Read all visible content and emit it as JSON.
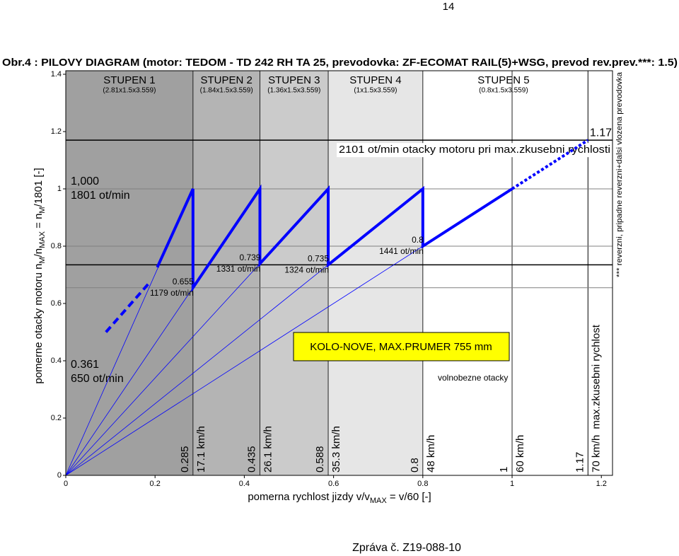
{
  "page_number": "14",
  "footer": "Zpráva č. Z19-088-10",
  "chart_data": {
    "type": "sawtooth",
    "title": "Obr.4 : PILOVY DIAGRAM (motor: TEDOM - TD 242 RH TA 25, prevodovka: ZF-ECOMAT RAIL(5)+WSG, prevod rev.prev.***: 1.5)",
    "xlabel": [
      {
        "text": "pomerna rychlost jizdy  v/v"
      },
      {
        "text": "MAX",
        "sub": true
      },
      {
        "text": " = v/60 [-]"
      }
    ],
    "ylabel": [
      {
        "text": "pomerne otacky motoru  n"
      },
      {
        "text": "M",
        "sub": true
      },
      {
        "text": "/n"
      },
      {
        "text": "MAX",
        "sub": true
      },
      {
        "text": " = n"
      },
      {
        "text": "M",
        "sub": true
      },
      {
        "text": "/1801 [-]"
      }
    ],
    "xlim": [
      0,
      1.225
    ],
    "xticks": [
      0,
      0.2,
      0.4,
      0.6,
      0.8,
      1,
      1.2
    ],
    "ylim": [
      0,
      1.4
    ],
    "yticks": [
      0,
      0.2,
      0.4,
      0.6,
      0.8,
      1,
      1.2,
      1.4
    ],
    "label_color": "#ff0000",
    "gears": [
      {
        "name": "STUPEN 1",
        "ratio": "(2.81x1.5x3.559)",
        "x": [
          0,
          0.285
        ],
        "color": "#a0a0a0"
      },
      {
        "name": "STUPEN 2",
        "ratio": "(1.84x1.5x3.559)",
        "x": [
          0.285,
          0.435
        ],
        "color": "#b4b4b4"
      },
      {
        "name": "STUPEN 3",
        "ratio": "(1.36x1.5x3.559)",
        "x": [
          0.435,
          0.588
        ],
        "color": "#cbcbcb"
      },
      {
        "name": "STUPEN 4",
        "ratio": "(1x1.5x3.559)",
        "x": [
          0.588,
          0.8
        ],
        "color": "#e6e6e6"
      },
      {
        "name": "STUPEN 5",
        "ratio": "(0.8x1.5x3.559)",
        "x": [
          0.8,
          1.225
        ],
        "color": "#ffffff"
      }
    ],
    "vlines": [
      {
        "value": 0.285,
        "speed": "17.1 km/h"
      },
      {
        "value": 0.435,
        "speed": "26.1 km/h"
      },
      {
        "value": 0.588,
        "speed": "35.3 km/h"
      },
      {
        "value": 0.8,
        "speed": "48 km/h"
      },
      {
        "value": 1,
        "speed": "60 km/h"
      },
      {
        "value": 1.17,
        "speed": "70 km/h",
        "note": "max.zkusebni rychlost"
      }
    ],
    "hlines": [
      {
        "value": 1.17,
        "color": "#000000",
        "label": "2101 ot/min  otacky motoru pri max.zkusebni rychlosti"
      },
      {
        "value": 1,
        "color": "#808080"
      },
      {
        "value": 0.8,
        "color": "#808080"
      },
      {
        "value": 0.735,
        "color": "#000000"
      },
      {
        "value": 0.655,
        "color": "#808080"
      }
    ],
    "points": [
      {
        "x": 0.285,
        "y": 0.655,
        "rpm": "1179 ot/min"
      },
      {
        "x": 0.435,
        "y": 0.739,
        "rpm": "1331 ot/min"
      },
      {
        "x": 0.588,
        "y": 0.735,
        "rpm": "1324 ot/min"
      },
      {
        "x": 0.8,
        "y": 0.8,
        "rpm": "1441 ot/min"
      }
    ],
    "levels": [
      {
        "value": {
          "value": 1,
          "label": "1,000"
        },
        "rpm": "1801 ot/min"
      },
      {
        "value": 0.361,
        "rpm": "650 ot/min"
      }
    ],
    "line_color": "#0000ff",
    "solid": {
      "x": [
        0.205,
        0.285,
        0.285,
        0.435,
        0.435,
        0.588,
        0.588,
        0.8,
        0.8,
        1
      ],
      "y": [
        0.726,
        1,
        0.655,
        1,
        0.739,
        1,
        0.735,
        1,
        0.8,
        1
      ]
    },
    "dashed": {
      "x": [
        0.09,
        0.19
      ],
      "y": [
        0.5,
        0.677
      ]
    },
    "dotted": {
      "x": [
        1,
        1.17
      ],
      "y": [
        1,
        1.17
      ]
    },
    "rays": {
      "x": [
        0.285,
        0.285,
        0.435,
        0.588,
        0.8
      ],
      "y": [
        1,
        0.655,
        0.739,
        0.735,
        0.8
      ]
    },
    "box": {
      "text": "KOLO-NOVE, MAX.PRUMER 755 mm",
      "color": "#ffff00"
    },
    "idle": "volnobezne otacky",
    "side_note": "*** reverzni, pripadne reverzni+dalsi vlozena prevodovka"
  }
}
